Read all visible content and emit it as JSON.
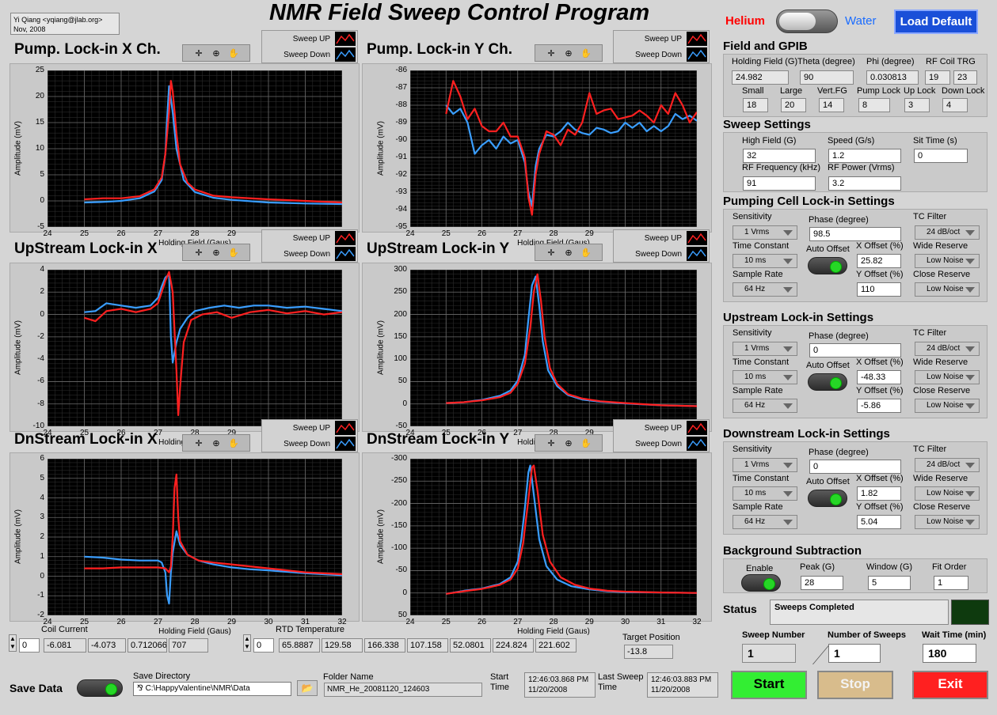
{
  "author": {
    "line1": "Yi Qiang <yqiang@jlab.org>",
    "line2": "Nov, 2008"
  },
  "title": "NMR Field Sweep Control Program",
  "top": {
    "helium_label": "Helium",
    "water_label": "Water",
    "load_default_label": "Load Default"
  },
  "legend": {
    "sweep_up": "Sweep UP",
    "sweep_down": "Sweep Down"
  },
  "chart_titles": {
    "pump_x": "Pump. Lock-in X Ch.",
    "pump_y": "Pump. Lock-in Y Ch.",
    "up_x": "UpStream Lock-in X",
    "up_y": "UpStream Lock-in Y",
    "dn_x": "DnStream Lock-in X",
    "dn_y": "DnStream Lock-in Y"
  },
  "chart_data": [
    {
      "id": "pump_x",
      "type": "line",
      "xlabel": "Holding Field (Gaus)",
      "ylabel": "Amplitude (mV)",
      "xlim": [
        24,
        32
      ],
      "ylim": [
        -5,
        25
      ],
      "yticks": [
        25,
        20,
        15,
        10,
        5,
        0,
        -5
      ],
      "xticks": [
        24,
        25,
        26,
        27,
        28,
        29,
        30,
        31,
        32
      ],
      "grid": true,
      "series": [
        {
          "name": "Sweep UP",
          "color": "#ff2020",
          "x": [
            25,
            25.5,
            26,
            26.5,
            26.9,
            27.1,
            27.2,
            27.3,
            27.35,
            27.4,
            27.5,
            27.6,
            27.8,
            28,
            28.5,
            29,
            30,
            31,
            32
          ],
          "y": [
            0.3,
            0.5,
            0.5,
            0.9,
            2.2,
            4.5,
            9,
            17,
            23,
            21,
            13,
            7,
            3.5,
            2.2,
            1,
            0.7,
            0.3,
            0,
            -0.3
          ]
        },
        {
          "name": "Sweep Down",
          "color": "#3a9eff",
          "x": [
            25,
            25.5,
            26,
            26.5,
            26.9,
            27.1,
            27.2,
            27.25,
            27.3,
            27.4,
            27.5,
            27.7,
            28,
            28.5,
            29,
            30,
            31,
            32
          ],
          "y": [
            -0.3,
            -0.2,
            0,
            0.5,
            1.8,
            4,
            9,
            16,
            22,
            17,
            10,
            4,
            1.7,
            0.6,
            0.2,
            -0.3,
            -0.5,
            -0.6
          ]
        }
      ]
    },
    {
      "id": "pump_y",
      "type": "line",
      "xlabel": "Holding Field (Gaus)",
      "ylabel": "Amplitude (mV)",
      "xlim": [
        24,
        32
      ],
      "ylim": [
        -95,
        -86
      ],
      "yticks": [
        -86,
        -87,
        -88,
        -89,
        -90,
        -91,
        -92,
        -93,
        -94,
        -95
      ],
      "xticks": [
        24,
        25,
        26,
        27,
        28,
        29,
        30,
        31,
        32
      ],
      "grid": true,
      "series": [
        {
          "name": "Sweep UP",
          "color": "#ff2020",
          "x": [
            25,
            25.2,
            25.4,
            25.6,
            25.8,
            26,
            26.2,
            26.4,
            26.6,
            26.8,
            27,
            27.2,
            27.3,
            27.4,
            27.5,
            27.6,
            27.8,
            28,
            28.2,
            28.4,
            28.6,
            28.8,
            29,
            29.2,
            29.4,
            29.6,
            29.8,
            30,
            30.2,
            30.4,
            30.6,
            30.8,
            31,
            31.2,
            31.4,
            31.6,
            31.8,
            32
          ],
          "y": [
            -88.5,
            -86.6,
            -87.5,
            -88.8,
            -88.2,
            -89.2,
            -89.5,
            -89.5,
            -89,
            -89.8,
            -89.8,
            -91,
            -93.3,
            -94.3,
            -92,
            -90.8,
            -89.5,
            -89.7,
            -90.3,
            -89.4,
            -89.7,
            -89,
            -87.3,
            -88.5,
            -88.3,
            -88.2,
            -88.8,
            -88.7,
            -88.6,
            -88.3,
            -88.6,
            -89,
            -88,
            -88.5,
            -87.3,
            -88,
            -89,
            -88.4
          ]
        },
        {
          "name": "Sweep Down",
          "color": "#3a9eff",
          "x": [
            25,
            25.2,
            25.4,
            25.6,
            25.8,
            26,
            26.2,
            26.4,
            26.6,
            26.8,
            27,
            27.2,
            27.3,
            27.4,
            27.5,
            27.6,
            27.8,
            28,
            28.2,
            28.4,
            28.6,
            28.8,
            29,
            29.2,
            29.4,
            29.6,
            29.8,
            30,
            30.2,
            30.4,
            30.6,
            30.8,
            31,
            31.2,
            31.4,
            31.6,
            31.8,
            32
          ],
          "y": [
            -88,
            -88.5,
            -88.2,
            -89,
            -90.8,
            -90.3,
            -90,
            -90.5,
            -89.8,
            -90.2,
            -90,
            -91.3,
            -93,
            -93.8,
            -91.5,
            -90.5,
            -89.7,
            -89.8,
            -89.5,
            -89,
            -89.4,
            -89.6,
            -89.7,
            -89.3,
            -89.4,
            -89.6,
            -89.5,
            -89,
            -89.3,
            -89,
            -89.5,
            -89.2,
            -89.5,
            -89.2,
            -88.5,
            -88.8,
            -88.6,
            -88.9
          ]
        }
      ]
    },
    {
      "id": "up_x",
      "type": "line",
      "xlabel": "Holding Field (Gaus)",
      "ylabel": "Amplitude (mV)",
      "xlim": [
        24,
        32
      ],
      "ylim": [
        -10,
        4
      ],
      "yticks": [
        4,
        2,
        0,
        -2,
        -4,
        -6,
        -8,
        -10
      ],
      "xticks": [
        24,
        25,
        26,
        27,
        28,
        29,
        30,
        31,
        32
      ],
      "grid": true,
      "series": [
        {
          "name": "Sweep UP",
          "color": "#ff2020",
          "x": [
            25,
            25.3,
            25.6,
            26,
            26.4,
            26.8,
            27,
            27.1,
            27.2,
            27.3,
            27.4,
            27.5,
            27.55,
            27.6,
            27.7,
            27.9,
            28.2,
            28.6,
            29,
            29.5,
            30,
            30.5,
            31,
            31.5,
            32
          ],
          "y": [
            -0.3,
            -0.6,
            0.3,
            0.5,
            0.2,
            0.5,
            1,
            2,
            3,
            3.8,
            2,
            -5,
            -9,
            -6.5,
            -2.5,
            -0.5,
            0,
            0.2,
            -0.3,
            0.2,
            0.4,
            0.1,
            0.3,
            0,
            0.2
          ]
        },
        {
          "name": "Sweep Down",
          "color": "#3a9eff",
          "x": [
            25,
            25.3,
            25.6,
            26,
            26.4,
            26.8,
            27,
            27.1,
            27.2,
            27.3,
            27.35,
            27.4,
            27.5,
            27.6,
            27.8,
            28,
            28.4,
            28.8,
            29.2,
            29.6,
            30,
            30.5,
            31,
            31.5,
            32
          ],
          "y": [
            0.2,
            0.3,
            1,
            0.8,
            0.6,
            0.8,
            1.5,
            2.5,
            3.3,
            3.6,
            -2,
            -4.3,
            -2.5,
            -1.3,
            -0.3,
            0.3,
            0.6,
            0.8,
            0.6,
            0.8,
            0.8,
            0.6,
            0.7,
            0.5,
            0.3
          ]
        }
      ]
    },
    {
      "id": "up_y",
      "type": "line",
      "xlabel": "Holding Field (Gaus)",
      "ylabel": "Amplitude (mV)",
      "xlim": [
        24,
        32
      ],
      "ylim": [
        -50,
        300
      ],
      "yticks": [
        300,
        250,
        200,
        150,
        100,
        50,
        0,
        -50
      ],
      "xticks": [
        24,
        25,
        26,
        27,
        28,
        29,
        30,
        31,
        32
      ],
      "grid": true,
      "series": [
        {
          "name": "Sweep UP",
          "color": "#ff2020",
          "x": [
            25,
            25.5,
            26,
            26.5,
            26.8,
            27,
            27.2,
            27.35,
            27.45,
            27.55,
            27.65,
            27.75,
            27.9,
            28.1,
            28.4,
            28.8,
            29.3,
            30,
            31,
            32
          ],
          "y": [
            2,
            4,
            8,
            15,
            25,
            45,
            90,
            170,
            250,
            290,
            230,
            150,
            80,
            45,
            22,
            12,
            6,
            2,
            -3,
            -5
          ]
        },
        {
          "name": "Sweep Down",
          "color": "#3a9eff",
          "x": [
            25,
            25.5,
            26,
            26.5,
            26.8,
            27,
            27.2,
            27.3,
            27.4,
            27.5,
            27.6,
            27.7,
            27.85,
            28.1,
            28.4,
            28.8,
            29.3,
            30,
            31,
            32
          ],
          "y": [
            2,
            4,
            9,
            18,
            30,
            52,
            110,
            190,
            265,
            285,
            220,
            140,
            75,
            40,
            20,
            10,
            5,
            1,
            -3,
            -5
          ]
        }
      ]
    },
    {
      "id": "dn_x",
      "type": "line",
      "xlabel": "Holding Field (Gaus)",
      "ylabel": "Amplitude (mV)",
      "xlim": [
        24,
        32
      ],
      "ylim": [
        -2,
        6
      ],
      "yticks": [
        6,
        5,
        4,
        3,
        2,
        1,
        0,
        -1,
        -2
      ],
      "xticks": [
        24,
        25,
        26,
        27,
        28,
        29,
        30,
        31,
        32
      ],
      "grid": true,
      "series": [
        {
          "name": "Sweep UP",
          "color": "#ff2020",
          "x": [
            25,
            25.5,
            26,
            26.5,
            27,
            27.2,
            27.3,
            27.35,
            27.4,
            27.45,
            27.5,
            27.55,
            27.6,
            27.8,
            28.1,
            28.5,
            29,
            29.5,
            30,
            31,
            32
          ],
          "y": [
            0.4,
            0.4,
            0.45,
            0.45,
            0.45,
            0.4,
            0.2,
            0.5,
            2,
            4.5,
            5.2,
            3,
            1.8,
            1.1,
            0.8,
            0.7,
            0.6,
            0.5,
            0.4,
            0.2,
            0.1
          ]
        },
        {
          "name": "Sweep Down",
          "color": "#3a9eff",
          "x": [
            25,
            25.5,
            26,
            26.5,
            27,
            27.1,
            27.2,
            27.25,
            27.3,
            27.35,
            27.4,
            27.5,
            27.6,
            27.8,
            28.1,
            28.5,
            29,
            29.5,
            30,
            31,
            32
          ],
          "y": [
            1,
            0.95,
            0.85,
            0.8,
            0.8,
            0.7,
            0.2,
            -1,
            -1.4,
            0.2,
            1.2,
            2.3,
            1.6,
            1.1,
            0.8,
            0.6,
            0.45,
            0.35,
            0.3,
            0.15,
            0.05
          ]
        }
      ]
    },
    {
      "id": "dn_y",
      "type": "line",
      "xlabel": "Holding Field (Gaus)",
      "ylabel": "Amplitude (mV)",
      "xlim": [
        24,
        32
      ],
      "ylim": [
        50,
        -300
      ],
      "yticks": [
        -300,
        -250,
        -200,
        -150,
        -100,
        -50,
        0,
        50
      ],
      "xticks": [
        24,
        25,
        26,
        27,
        28,
        29,
        30,
        31,
        32
      ],
      "grid": true,
      "series": [
        {
          "name": "Sweep UP",
          "color": "#ff2020",
          "x": [
            25,
            25.5,
            26,
            26.5,
            26.8,
            27,
            27.15,
            27.3,
            27.4,
            27.45,
            27.55,
            27.7,
            27.9,
            28.2,
            28.6,
            29,
            29.5,
            30,
            31,
            32
          ],
          "y": [
            2,
            -4,
            -9,
            -18,
            -30,
            -55,
            -110,
            -210,
            -280,
            -285,
            -230,
            -130,
            -70,
            -35,
            -18,
            -10,
            -5,
            -3,
            -1,
            0
          ]
        },
        {
          "name": "Sweep Down",
          "color": "#3a9eff",
          "x": [
            25,
            25.5,
            26,
            26.5,
            26.8,
            27,
            27.1,
            27.2,
            27.3,
            27.35,
            27.45,
            27.6,
            27.8,
            28.1,
            28.5,
            29,
            29.5,
            30,
            31,
            32
          ],
          "y": [
            2,
            -5,
            -10,
            -20,
            -35,
            -70,
            -120,
            -190,
            -270,
            -285,
            -220,
            -120,
            -60,
            -30,
            -15,
            -8,
            -4,
            -2,
            -1,
            0
          ]
        }
      ]
    }
  ],
  "field_gpib": {
    "title": "Field and GPIB",
    "holding_field_label": "Holding Field (G)",
    "holding_field": "24.982",
    "theta_label": "Theta (degree)",
    "theta": "90",
    "phi_label": "Phi (degree)",
    "phi": "0.030813",
    "rf_coil_label": "RF Coil TRG",
    "rf_coil_a": "19",
    "rf_coil_b": "23",
    "small_label": "Small",
    "small": "18",
    "large_label": "Large",
    "large": "20",
    "vertfg_label": "Vert.FG",
    "vertfg": "14",
    "pumplock_label": "Pump Lock",
    "pumplock": "8",
    "uplock_label": "Up Lock",
    "uplock": "3",
    "downlock_label": "Down Lock",
    "downlock": "4"
  },
  "sweep": {
    "title": "Sweep Settings",
    "high_field_label": "High Field (G)",
    "high_field": "32",
    "speed_label": "Speed (G/s)",
    "speed": "1.2",
    "sit_time_label": "Sit Time (s)",
    "sit_time": "0",
    "rf_freq_label": "RF Frequency (kHz)",
    "rf_freq": "91",
    "rf_power_label": "RF Power (Vrms)",
    "rf_power": "3.2"
  },
  "lockin_labels": {
    "sensitivity": "Sensitivity",
    "phase": "Phase (degree)",
    "tc_filter": "TC Filter",
    "time_constant": "Time Constant",
    "auto_offset": "Auto Offset",
    "x_offset": "X Offset (%)",
    "wide_reserve": "Wide Reserve",
    "sample_rate": "Sample Rate",
    "y_offset": "Y Offset (%)",
    "close_reserve": "Close Reserve"
  },
  "pump_lockin": {
    "title": "Pumping Cell Lock-in Settings",
    "sensitivity": "1 Vrms",
    "phase": "98.5",
    "tc_filter": "24 dB/oct",
    "time_constant": "10 ms",
    "x_offset": "25.82",
    "wide_reserve": "Low Noise",
    "sample_rate": "64 Hz",
    "y_offset": "110",
    "close_reserve": "Low Noise"
  },
  "up_lockin": {
    "title": "Upstream Lock-in Settings",
    "sensitivity": "1 Vrms",
    "phase": "0",
    "tc_filter": "24 dB/oct",
    "time_constant": "10 ms",
    "x_offset": "-48.33",
    "wide_reserve": "Low Noise",
    "sample_rate": "64 Hz",
    "y_offset": "-5.86",
    "close_reserve": "Low Noise"
  },
  "dn_lockin": {
    "title": "Downstream Lock-in Settings",
    "sensitivity": "1 Vrms",
    "phase": "0",
    "tc_filter": "24 dB/oct",
    "time_constant": "10 ms",
    "x_offset": "1.82",
    "wide_reserve": "Low Noise",
    "sample_rate": "64 Hz",
    "y_offset": "5.04",
    "close_reserve": "Low Noise"
  },
  "background": {
    "title": "Background Subtraction",
    "enable_label": "Enable",
    "peak_label": "Peak (G)",
    "peak": "28",
    "window_label": "Window (G)",
    "window": "5",
    "fit_order_label": "Fit Order",
    "fit_order": "1"
  },
  "status": {
    "label": "Status",
    "text": "Sweeps Completed"
  },
  "sweep_counts": {
    "sweep_number_label": "Sweep Number",
    "sweep_number": "1",
    "number_of_sweeps_label": "Number of Sweeps",
    "number_of_sweeps": "1",
    "wait_time_label": "Wait Time (min)",
    "wait_time": "180"
  },
  "buttons": {
    "start": "Start",
    "stop": "Stop",
    "exit": "Exit"
  },
  "coil_current": {
    "label": "Coil Current",
    "index": "0",
    "values": [
      "-6.081",
      "-4.073",
      "0.712066",
      "707"
    ]
  },
  "rtd": {
    "label": "RTD Temperature",
    "index": "0",
    "values": [
      "65.8887",
      "129.58",
      "166.338",
      "107.158",
      "52.0801",
      "224.824",
      "221.602"
    ]
  },
  "target": {
    "label": "Target Position",
    "value": "-13.8"
  },
  "save": {
    "label": "Save Data",
    "dir_label": "Save Directory",
    "dir_value": "C:\\HappyValentine\\NMR\\Data",
    "folder_label": "Folder Name",
    "folder_value": "NMR_He_20081120_124603"
  },
  "start_time": {
    "label1": "Start",
    "label2": "Time",
    "line1": "12:46:03.868 PM",
    "line2": "11/20/2008"
  },
  "last_sweep": {
    "label1": "Last Sweep",
    "label2": "Time",
    "line1": "12:46:03.883 PM",
    "line2": "11/20/2008"
  },
  "colors": {
    "up": "#ff2020",
    "down": "#3a9eff",
    "start_btn": "#33ee33",
    "stop_btn": "#d8bc8c",
    "exit_btn": "#ff2020",
    "load_default_btn": "#1a4fd8"
  }
}
